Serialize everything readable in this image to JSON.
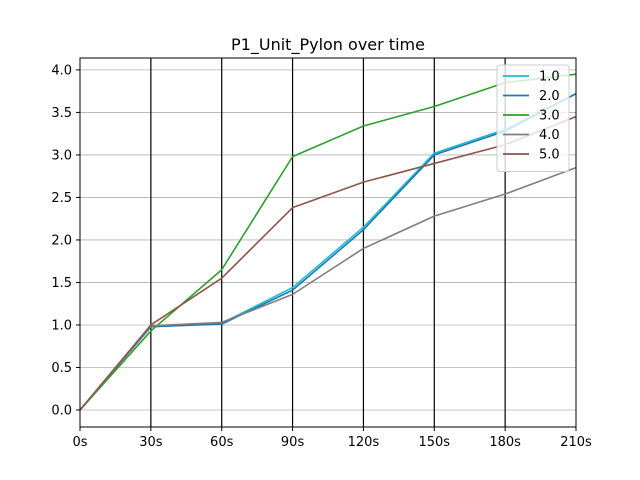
{
  "chart_data": {
    "type": "line",
    "title": "P1_Unit_Pylon over time",
    "xlabel": "",
    "ylabel": "",
    "x": [
      0,
      30,
      60,
      90,
      120,
      150,
      180,
      210
    ],
    "x_tick_labels": [
      "0s",
      "30s",
      "60s",
      "90s",
      "120s",
      "150s",
      "180s",
      "210s"
    ],
    "xlim": [
      0,
      210
    ],
    "ylim": [
      -0.2,
      4.14
    ],
    "y_ticks": [
      0.0,
      0.5,
      1.0,
      1.5,
      2.0,
      2.5,
      3.0,
      3.5,
      4.0
    ],
    "y_tick_labels": [
      "0.0",
      "0.5",
      "1.0",
      "1.5",
      "2.0",
      "2.5",
      "3.0",
      "3.5",
      "4.0"
    ],
    "grid": {
      "horizontal": true,
      "vertical_at_xticks": true
    },
    "legend_position": "top-right",
    "series": [
      {
        "name": "1.0",
        "color": "#17becf",
        "values": [
          0.0,
          0.98,
          1.02,
          1.44,
          2.15,
          3.02,
          3.3,
          3.72
        ]
      },
      {
        "name": "2.0",
        "color": "#1f77b4",
        "values": [
          0.0,
          0.98,
          1.01,
          1.41,
          2.12,
          3.0,
          3.28,
          3.72
        ]
      },
      {
        "name": "3.0",
        "color": "#2ca02c",
        "values": [
          0.0,
          0.93,
          1.65,
          2.98,
          3.34,
          3.57,
          3.85,
          3.95
        ]
      },
      {
        "name": "4.0",
        "color": "#7f7f7f",
        "values": [
          0.0,
          0.99,
          1.03,
          1.36,
          1.9,
          2.28,
          2.54,
          2.85
        ]
      },
      {
        "name": "5.0",
        "color": "#8c564b",
        "values": [
          0.0,
          1.0,
          1.55,
          2.38,
          2.68,
          2.9,
          3.12,
          3.45
        ]
      }
    ]
  }
}
